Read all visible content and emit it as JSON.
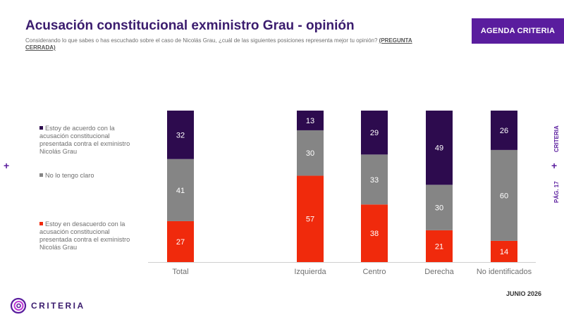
{
  "header": {
    "title": "Acusación constitucional exministro Grau - opinión",
    "subtitle": "Considerando lo que sabes o has escuchado sobre el caso de Nicolás Grau, ¿cuál de las siguientes posiciones representa mejor tu opinión?",
    "subtitle_tag": "(PREGUNTA CERRADA)",
    "badge": "AGENDA CRITERIA"
  },
  "side": {
    "brand": "CRITERIA",
    "page": "PÁG. 17"
  },
  "footer": {
    "date": "JUNIO 2026",
    "logo_text": "CRITERIA"
  },
  "colors": {
    "agree": "#2d0b4e",
    "unclear": "#858585",
    "disagree": "#f02a0c",
    "brand": "#5a1d9e",
    "title": "#3b1c6e"
  },
  "chart_data": {
    "type": "bar",
    "stacked": true,
    "categories": [
      "Total",
      "Izquierda",
      "Centro",
      "Derecha",
      "No identificados"
    ],
    "series": [
      {
        "name": "Estoy en desacuerdo con la acusación constitucional presentada contra el exministro Nicolás Grau",
        "values": [
          27,
          57,
          38,
          21,
          14
        ]
      },
      {
        "name": "No lo tengo claro",
        "values": [
          41,
          30,
          33,
          30,
          60
        ]
      },
      {
        "name": "Estoy de acuerdo con la acusación constitucional presentada contra el exministro Nicolás Grau",
        "values": [
          32,
          13,
          29,
          49,
          26
        ]
      }
    ],
    "ylim": [
      0,
      100
    ],
    "legend_order": [
      2,
      1,
      0
    ],
    "legend_position": "left"
  }
}
